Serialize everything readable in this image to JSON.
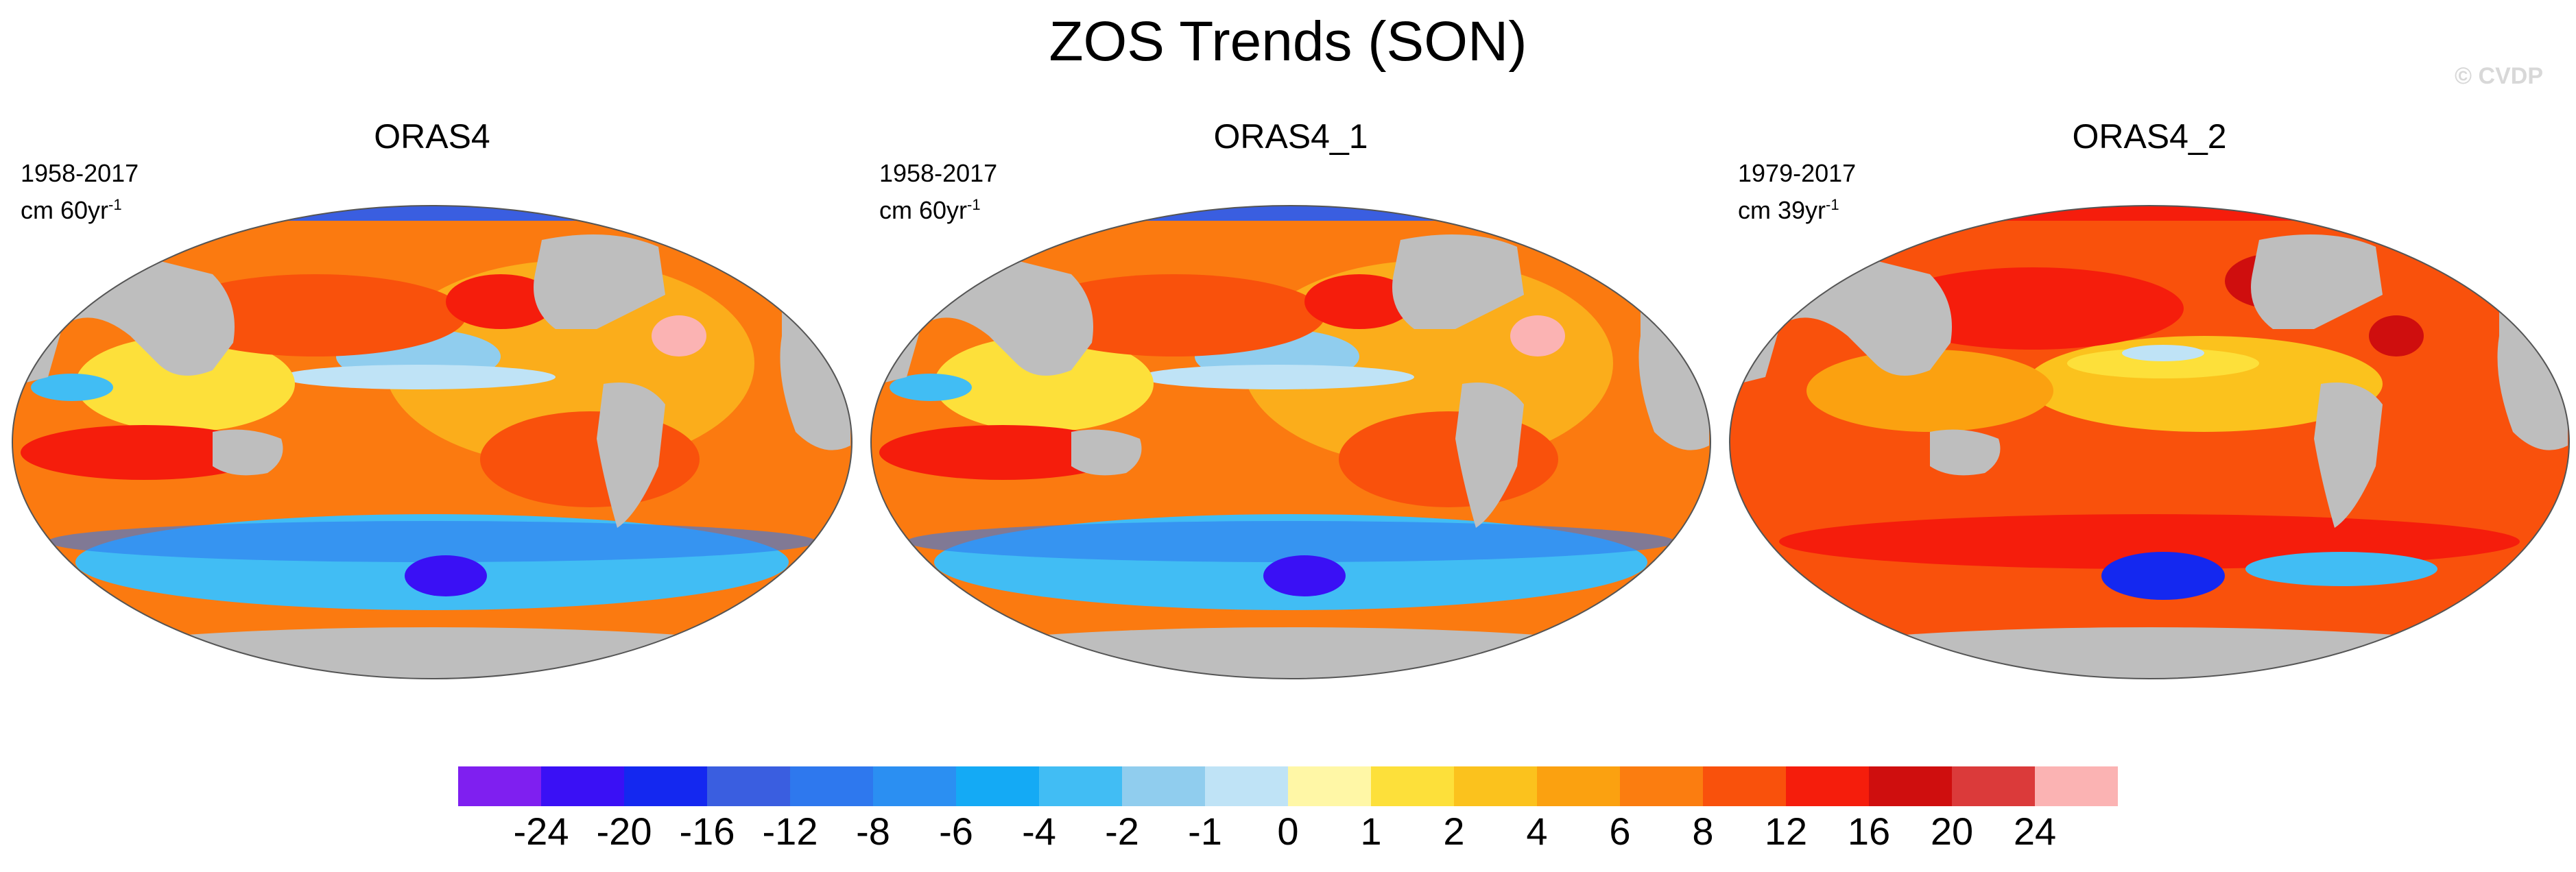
{
  "title": "ZOS Trends (SON)",
  "watermark": "© CVDP",
  "panels": [
    {
      "name": "ORAS4",
      "period": "1958-2017",
      "units_base": "cm 60yr",
      "units_exp": "-1"
    },
    {
      "name": "ORAS4_1",
      "period": "1958-2017",
      "units_base": "cm 60yr",
      "units_exp": "-1"
    },
    {
      "name": "ORAS4_2",
      "period": "1979-2017",
      "units_base": "cm 39yr",
      "units_exp": "-1"
    }
  ],
  "colorbar": {
    "colors": [
      "#7f1ff0",
      "#3a10f5",
      "#1428f0",
      "#3a5ee0",
      "#2e78ee",
      "#2b8ff2",
      "#14aaf5",
      "#41bdf4",
      "#90cdee",
      "#bfe3f6",
      "#fff7a6",
      "#fde03a",
      "#fbc21d",
      "#fba110",
      "#fb7d10",
      "#f9510c",
      "#f51d0c",
      "#cf0e0e",
      "#db3a3a",
      "#fbb3b3"
    ],
    "labels": [
      "-24",
      "-20",
      "-16",
      "-12",
      "-8",
      "-6",
      "-4",
      "-2",
      "-1",
      "0",
      "1",
      "2",
      "4",
      "6",
      "8",
      "12",
      "16",
      "20",
      "24"
    ]
  },
  "colors": {
    "land": "#bebebe",
    "ocean_base": "#fb8a12"
  }
}
